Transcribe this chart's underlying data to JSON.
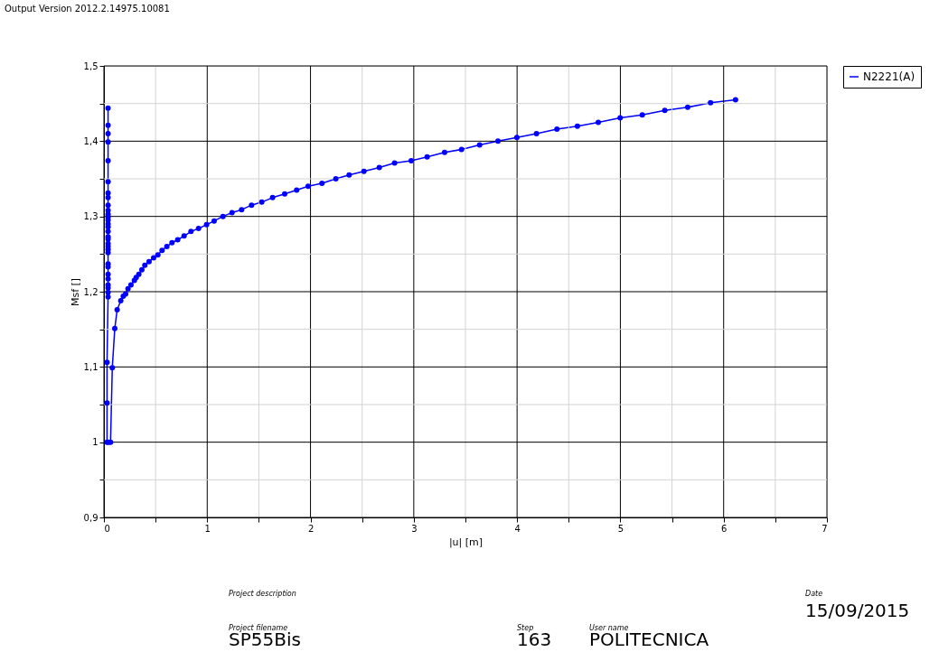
{
  "chart_data": {
    "type": "line",
    "xlabel": "|u| [m]",
    "ylabel": "Msf []",
    "annotations": [
      "Output Version 2012.2.14975.10081",
      "Project description",
      "Date",
      "15/09/2015",
      "Project filename",
      "SP55Bis",
      "Step",
      "163",
      "User name",
      "POLITECNICA"
    ],
    "xlim": [
      0,
      7
    ],
    "ylim": [
      0.9,
      1.5
    ],
    "xticks": [
      0,
      {
        "value": 0.5,
        "label": null
      },
      1,
      {
        "value": 1.5,
        "label": null
      },
      2,
      {
        "value": 2.5,
        "label": null
      },
      3,
      {
        "value": 3.5,
        "label": null
      },
      4,
      {
        "value": 4.5,
        "label": null
      },
      5,
      {
        "value": 5.5,
        "label": null
      },
      6,
      {
        "value": 6.5,
        "label": null
      },
      7
    ],
    "yticks": [
      {
        "value": 0.9,
        "label": "0,9"
      },
      {
        "value": 0.95,
        "label": null
      },
      1,
      {
        "value": 1.05,
        "label": null
      },
      {
        "value": 1.1,
        "label": "1,1"
      },
      {
        "value": 1.15,
        "label": null
      },
      {
        "value": 1.2,
        "label": "1,2"
      },
      {
        "value": 1.25,
        "label": null
      },
      {
        "value": 1.3,
        "label": "1,3"
      },
      {
        "value": 1.35,
        "label": null
      },
      {
        "value": 1.4,
        "label": "1,4"
      },
      {
        "value": 1.45,
        "label": null
      },
      {
        "value": 1.5,
        "label": "1,5"
      }
    ],
    "grid": true,
    "legend": "top right",
    "marker": "circle",
    "line_style": "solid",
    "series": [
      {
        "name": "N2221(A)",
        "color": "#0000ff",
        "x": [
          0.04,
          0.04,
          0.04,
          0.04,
          0.04,
          0.04,
          0.04,
          0.04,
          0.04,
          0.04,
          0.04,
          0.04,
          0.04,
          0.04,
          0.04,
          0.04,
          0.04,
          0.04,
          0.04,
          0.04,
          0.04,
          0.04,
          0.04,
          0.04,
          0.04,
          0.04,
          0.04,
          0.04,
          0.04,
          0.04,
          0.03,
          0.03,
          0.03,
          0.044,
          0.064,
          0.081,
          0.105,
          0.128,
          0.163,
          0.187,
          0.21,
          0.233,
          0.262,
          0.295,
          0.312,
          0.338,
          0.367,
          0.396,
          0.437,
          0.481,
          0.522,
          0.563,
          0.609,
          0.659,
          0.714,
          0.776,
          0.843,
          0.916,
          0.994,
          1.067,
          1.152,
          1.24,
          1.333,
          1.429,
          1.528,
          1.633,
          1.75,
          1.866,
          1.977,
          2.111,
          2.245,
          2.374,
          2.517,
          2.666,
          2.814,
          2.975,
          3.129,
          3.298,
          3.462,
          3.637,
          3.815,
          3.998,
          4.188,
          4.386,
          4.584,
          4.786,
          4.998,
          5.212,
          5.43,
          5.652,
          5.873,
          6.115
        ],
        "values": [
          1.444,
          1.421,
          1.41,
          1.399,
          1.374,
          1.346,
          1.331,
          1.325,
          1.315,
          1.308,
          1.303,
          1.299,
          1.295,
          1.29,
          1.286,
          1.28,
          1.273,
          1.27,
          1.264,
          1.26,
          1.256,
          1.252,
          1.237,
          1.233,
          1.223,
          1.217,
          1.209,
          1.205,
          1.199,
          1.193,
          1.106,
          1.052,
          1.0,
          1.0,
          1.0,
          1.099,
          1.151,
          1.176,
          1.188,
          1.194,
          1.197,
          1.204,
          1.209,
          1.215,
          1.219,
          1.223,
          1.229,
          1.235,
          1.24,
          1.245,
          1.249,
          1.255,
          1.26,
          1.265,
          1.269,
          1.274,
          1.28,
          1.284,
          1.289,
          1.294,
          1.3,
          1.305,
          1.309,
          1.315,
          1.319,
          1.325,
          1.33,
          1.335,
          1.34,
          1.344,
          1.35,
          1.355,
          1.36,
          1.365,
          1.371,
          1.374,
          1.379,
          1.385,
          1.389,
          1.395,
          1.4,
          1.405,
          1.41,
          1.416,
          1.42,
          1.425,
          1.431,
          1.435,
          1.441,
          1.445,
          1.451,
          1.455
        ]
      }
    ]
  }
}
